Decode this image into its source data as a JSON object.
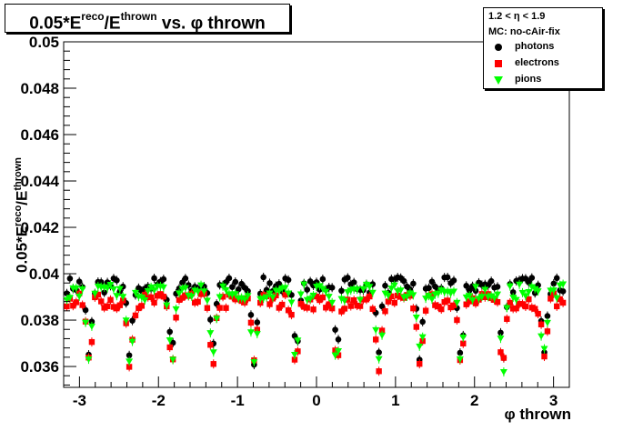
{
  "header": {
    "title_main": "0.05*E",
    "title_sup1": "reco",
    "title_mid": "/E",
    "title_sup2": "thrown",
    "title_end": " vs. φ thrown"
  },
  "legend": {
    "header_line1": "1.2 < η < 1.9",
    "header_line2": "MC: no-cAir-fix",
    "entries": [
      {
        "label": "photons",
        "color": "#000000",
        "marker": "circle"
      },
      {
        "label": "electrons",
        "color": "#ff0000",
        "marker": "square"
      },
      {
        "label": "pions",
        "color": "#00ff00",
        "marker": "triangle-down"
      }
    ]
  },
  "axes": {
    "ylabel_main": "0.05*E",
    "ylabel_sup": "reco",
    "ylabel_end": "/E",
    "ylabel_sup2": "thrown",
    "xlabel": "φ thrown"
  },
  "chart_data": {
    "type": "scatter",
    "title": "0.05*E^reco/E^thrown vs. φ thrown",
    "xlabel": "φ thrown",
    "ylabel": "0.05*E^reco/E^thrown",
    "xlim": [
      -3.2,
      3.2
    ],
    "ylim": [
      0.0351,
      0.05
    ],
    "xticks": [
      -3,
      -2,
      -1,
      0,
      1,
      2,
      3
    ],
    "yticks": [
      0.036,
      0.038,
      0.04,
      0.042,
      0.044,
      0.046,
      0.048,
      0.05
    ],
    "ytick_labels": [
      "0.036",
      "0.038",
      "0.04",
      "0.042",
      "0.044",
      "0.046",
      "0.048",
      "0.05"
    ],
    "xtick_labels": [
      "-3",
      "-2",
      "-1",
      "0",
      "1",
      "2",
      "3"
    ],
    "sector_period": 0.5236,
    "dip_phases": [
      -2.88,
      -2.36,
      -1.83,
      -1.31,
      -0.79,
      -0.26,
      0.26,
      0.79,
      1.31,
      1.83,
      2.36,
      2.88
    ],
    "series": [
      {
        "name": "photons",
        "color": "#000000",
        "marker": "circle",
        "plateau": 0.0395,
        "dip_min": 0.0362
      },
      {
        "name": "electrons",
        "color": "#ff0000",
        "marker": "square",
        "plateau": 0.0388,
        "dip_min": 0.0357
      },
      {
        "name": "pions",
        "color": "#00ff00",
        "marker": "triangle-down",
        "plateau": 0.0392,
        "dip_min": 0.0358
      }
    ]
  }
}
